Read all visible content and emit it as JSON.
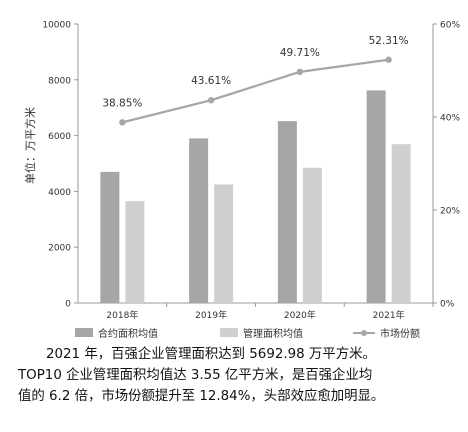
{
  "chart_data": {
    "type": "bar",
    "categories": [
      "2018年",
      "2019年",
      "2020年",
      "2021年"
    ],
    "series": [
      {
        "name": "合约面积均值",
        "type": "bar",
        "axis": "left",
        "color": "#a6a6a6",
        "values": [
          4700,
          5900,
          6520,
          7620
        ]
      },
      {
        "name": "管理面积均值",
        "type": "bar",
        "axis": "left",
        "color": "#cfcfcf",
        "values": [
          3650,
          4250,
          4850,
          5692.98
        ]
      },
      {
        "name": "市场份额",
        "type": "line",
        "axis": "right",
        "color": "#a6a6a6",
        "values": [
          38.85,
          43.61,
          49.71,
          52.31
        ],
        "labels": [
          "38.85%",
          "43.61%",
          "49.71%",
          "52.31%"
        ]
      }
    ],
    "ylabel": "单位：万平方米",
    "ylim": [
      0,
      10000
    ],
    "yticks": [
      "0",
      "2000",
      "4000",
      "6000",
      "8000",
      "10000"
    ],
    "y2lim": [
      0,
      60
    ],
    "y2ticks": [
      "0%",
      "20%",
      "40%",
      "60%"
    ],
    "grid": false,
    "legend_position": "bottom"
  },
  "caption": {
    "line1": "2021 年，百强企业管理面积达到 5692.98 万平方米。",
    "line2": "TOP10 企业管理面积均值达 3.55 亿平方米，是百强企业均",
    "line3": "值的 6.2 倍，市场份额提升至 12.84%，头部效应愈加明显。"
  }
}
